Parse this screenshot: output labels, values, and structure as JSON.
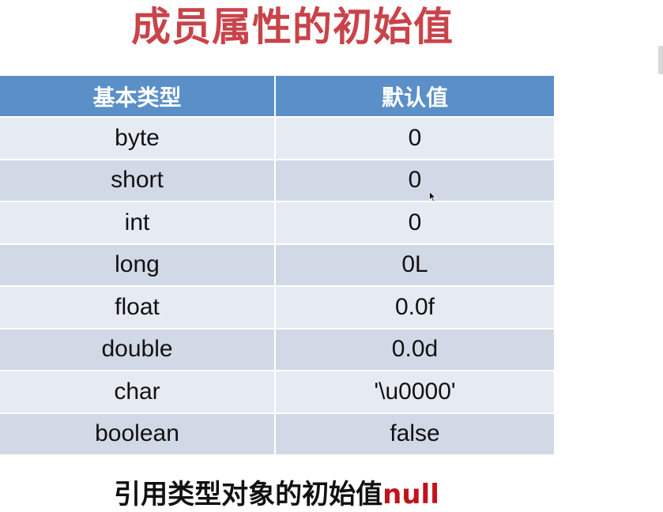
{
  "title": "成员属性的初始值",
  "table": {
    "headers": [
      "基本类型",
      "默认值"
    ],
    "rows": [
      {
        "type": "byte",
        "default": "0"
      },
      {
        "type": "short",
        "default": "0"
      },
      {
        "type": "int",
        "default": "0"
      },
      {
        "type": "long",
        "default": "0L"
      },
      {
        "type": "float",
        "default": "0.0f"
      },
      {
        "type": "double",
        "default": "0.0d"
      },
      {
        "type": "char",
        "default": "'\\u0000'"
      },
      {
        "type": "boolean",
        "default": "false"
      }
    ]
  },
  "footer": {
    "text": "引用类型对象的初始值",
    "accent": "null"
  },
  "colors": {
    "title": "#c8444a",
    "header_bg": "#5b8fc8",
    "row_dark": "#d2d9e6",
    "row_light": "#e6ebf3",
    "accent": "#c0141c"
  }
}
